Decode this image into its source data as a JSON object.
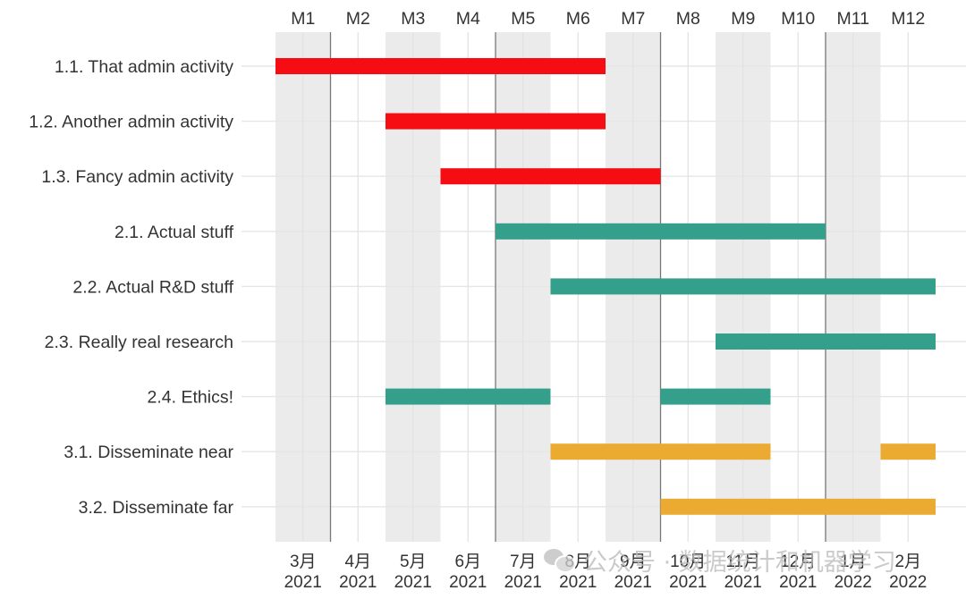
{
  "chart_data": {
    "type": "gantt",
    "top_axis_labels": [
      "M1",
      "M2",
      "M3",
      "M4",
      "M5",
      "M6",
      "M7",
      "M8",
      "M9",
      "M10",
      "M11",
      "M12"
    ],
    "bottom_axis_labels": [
      [
        "3月",
        "2021"
      ],
      [
        "4月",
        "2021"
      ],
      [
        "5月",
        "2021"
      ],
      [
        "6月",
        "2021"
      ],
      [
        "7月",
        "2021"
      ],
      [
        "8月",
        "2021"
      ],
      [
        "9月",
        "2021"
      ],
      [
        "10月",
        "2021"
      ],
      [
        "11月",
        "2021"
      ],
      [
        "12月",
        "2021"
      ],
      [
        "1月",
        "2022"
      ],
      [
        "2月",
        "2022"
      ]
    ],
    "x_range_months": [
      0,
      12
    ],
    "shaded_columns": [
      0,
      2,
      4,
      6,
      8,
      10
    ],
    "phase_separators": [
      1,
      4,
      7,
      10
    ],
    "colors": {
      "red": "#f50d13",
      "teal": "#34a08b",
      "gold": "#ebab33"
    },
    "tasks": [
      {
        "label": "1.1. That admin activity",
        "color": "red",
        "segments": [
          [
            0,
            6
          ]
        ]
      },
      {
        "label": "1.2. Another admin activity",
        "color": "red",
        "segments": [
          [
            2,
            6
          ]
        ]
      },
      {
        "label": "1.3. Fancy admin activity",
        "color": "red",
        "segments": [
          [
            3,
            7
          ]
        ]
      },
      {
        "label": "2.1. Actual stuff",
        "color": "teal",
        "segments": [
          [
            4,
            10
          ]
        ]
      },
      {
        "label": "2.2. Actual R&D stuff",
        "color": "teal",
        "segments": [
          [
            5,
            12
          ]
        ]
      },
      {
        "label": "2.3. Really real research",
        "color": "teal",
        "segments": [
          [
            8,
            12
          ]
        ]
      },
      {
        "label": "2.4. Ethics!",
        "color": "teal",
        "segments": [
          [
            2,
            5
          ],
          [
            7,
            9
          ]
        ]
      },
      {
        "label": "3.1. Disseminate near",
        "color": "gold",
        "segments": [
          [
            5,
            9
          ],
          [
            11,
            12
          ]
        ]
      },
      {
        "label": "3.2. Disseminate far",
        "color": "gold",
        "segments": [
          [
            7,
            12
          ]
        ]
      }
    ]
  },
  "watermark": {
    "text": "公众号 · 数据统计和机器学习",
    "icon": "wechat-icon"
  }
}
